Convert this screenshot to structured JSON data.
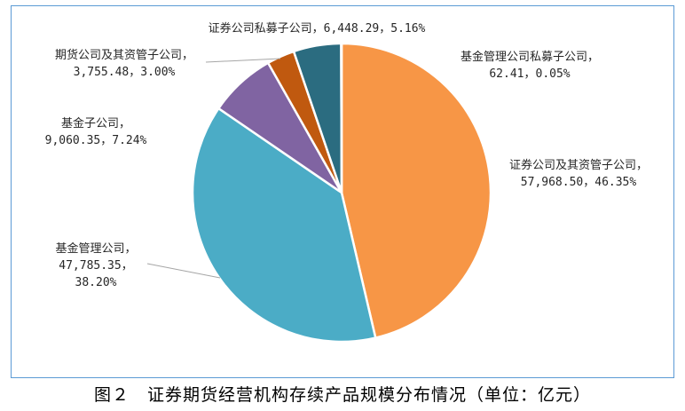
{
  "caption": "图２　证券期货经营机构存续产品规模分布情况（单位：亿元）",
  "chart_data": {
    "type": "pie",
    "title": "",
    "slices": [
      {
        "name": "证券公司及其资管子公司",
        "value": 57968.5,
        "percent": 46.35,
        "color": "#f79646",
        "label_lines": [
          "证券公司及其资管子公司，",
          "57,968.50，46.35%"
        ]
      },
      {
        "name": "基金管理公司",
        "value": 47785.35,
        "percent": 38.2,
        "color": "#4bacc6",
        "label_lines": [
          "基金管理公司，",
          "47,785.35，",
          "38.20%"
        ]
      },
      {
        "name": "基金子公司",
        "value": 9060.35,
        "percent": 7.24,
        "color": "#8064a2",
        "label_lines": [
          "基金子公司，",
          "9,060.35，7.24%"
        ]
      },
      {
        "name": "期货公司及其资管子公司",
        "value": 3755.48,
        "percent": 3.0,
        "color": "#c0590f",
        "label_lines": [
          "期货公司及其资管子公司，",
          "3,755.48，3.00%"
        ]
      },
      {
        "name": "证券公司私募子公司",
        "value": 6448.29,
        "percent": 5.16,
        "color": "#2b6c80",
        "label_lines": [
          "证券公司私募子公司，6,448.29，5.16%"
        ]
      },
      {
        "name": "基金管理公司私募子公司",
        "value": 62.41,
        "percent": 0.05,
        "color": "#4f81bd",
        "label_lines": [
          "基金管理公司私募子公司，",
          "62.41，0.05%"
        ]
      }
    ]
  }
}
